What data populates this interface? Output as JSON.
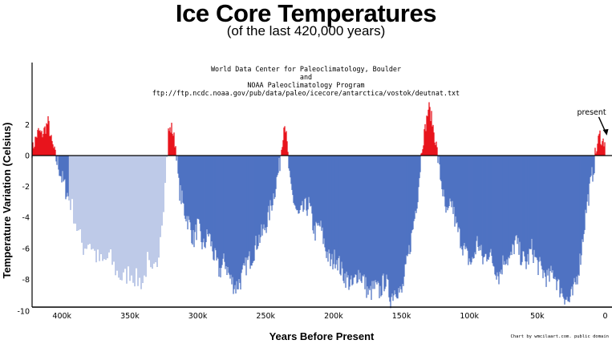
{
  "chart_data": {
    "type": "area",
    "title": "Ice Core Temperatures",
    "subtitle": "(of the last 420,000 years)",
    "source_lines": [
      "World Data Center for Paleoclimatology, Boulder",
      "and",
      "NOAA Paleoclimatology Program",
      "ftp://ftp.ncdc.noaa.gov/pub/data/paleo/icecore/antarctica/vostok/deutnat.txt"
    ],
    "credit": "Chart by wmcilaart.com. public domain",
    "xlabel": "Years Before Present",
    "ylabel": "Temperature Variation (Celsius)",
    "x_unit": "years before present",
    "x_reversed": true,
    "xlim": [
      422000,
      -5000
    ],
    "ylim": [
      -10,
      3
    ],
    "x_ticks": [
      {
        "value": 400000,
        "label": "400k"
      },
      {
        "value": 350000,
        "label": "350k"
      },
      {
        "value": 300000,
        "label": "300k"
      },
      {
        "value": 250000,
        "label": "250k"
      },
      {
        "value": 200000,
        "label": "200k"
      },
      {
        "value": 150000,
        "label": "150k"
      },
      {
        "value": 100000,
        "label": "100k"
      },
      {
        "value": 50000,
        "label": "50k"
      },
      {
        "value": 0,
        "label": "0"
      }
    ],
    "y_ticks": [
      {
        "value": 2,
        "label": "2"
      },
      {
        "value": 0,
        "label": "0"
      },
      {
        "value": -2,
        "label": "-2"
      },
      {
        "value": -4,
        "label": "-4"
      },
      {
        "value": -6,
        "label": "-6"
      },
      {
        "value": -8,
        "label": "-8"
      },
      {
        "value": -10,
        "label": "-10"
      }
    ],
    "colors": {
      "warm": "#e8141c",
      "cold": "#4f72c2",
      "cold_sparse": "#7d96d1"
    },
    "sparse_segment": [
      395000,
      322000
    ],
    "annotation": {
      "text": "present",
      "x": 0,
      "y": 1.3
    },
    "series": [
      {
        "x": [
          422000,
          419000,
          417000,
          415000,
          412000,
          410000,
          408000,
          406000,
          404000,
          402000,
          400000,
          396000,
          392000,
          388000,
          384000,
          380000,
          375000,
          370000,
          365000,
          360000,
          355000,
          350000,
          345000,
          340000,
          337000,
          334000,
          330000,
          327000,
          324000,
          322000,
          319000,
          316000,
          314000,
          310000,
          306000,
          303000,
          300000,
          296000,
          292000,
          288000,
          284000,
          280000,
          276000,
          272000,
          268000,
          264000,
          260000,
          256000,
          252000,
          248000,
          244000,
          240000,
          238000,
          236000,
          234000,
          232000,
          229000,
          226000,
          222000,
          218000,
          214000,
          210000,
          206000,
          202000,
          198000,
          194000,
          190000,
          186000,
          182000,
          178000,
          174000,
          170000,
          166000,
          162000,
          158000,
          154000,
          150000,
          146000,
          142000,
          138000,
          135000,
          132000,
          130000,
          128000,
          126000,
          124000,
          122000,
          120000,
          118000,
          116000,
          113000,
          110000,
          106000,
          102000,
          98000,
          94000,
          90000,
          86000,
          82000,
          78000,
          74000,
          70000,
          66000,
          62000,
          58000,
          54000,
          50000,
          46000,
          42000,
          38000,
          34000,
          30000,
          27000,
          24000,
          21000,
          18000,
          16000,
          14000,
          12000,
          10000,
          8000,
          6000,
          4000,
          2000,
          0
        ],
        "y": [
          0.3,
          1.2,
          1.6,
          1.3,
          1.8,
          2.2,
          1.0,
          0.4,
          -0.3,
          -0.8,
          -1.5,
          -2.5,
          -3.5,
          -5.0,
          -6.0,
          -5.5,
          -6.5,
          -7.0,
          -6.5,
          -7.5,
          -8.0,
          -7.5,
          -8.0,
          -8.2,
          -6.8,
          -8.0,
          -7.0,
          -4.5,
          -2.0,
          1.5,
          1.8,
          0.5,
          -2.0,
          -3.5,
          -4.5,
          -5.5,
          -4.5,
          -6.0,
          -5.0,
          -6.5,
          -7.5,
          -6.8,
          -8.0,
          -8.5,
          -8.0,
          -7.0,
          -6.5,
          -5.5,
          -5.0,
          -4.0,
          -2.5,
          -0.8,
          0.8,
          2.3,
          0.5,
          -2.0,
          -3.0,
          -4.0,
          -3.5,
          -3.2,
          -5.0,
          -4.5,
          -6.0,
          -7.0,
          -6.5,
          -7.5,
          -8.0,
          -8.5,
          -7.5,
          -8.0,
          -9.0,
          -8.5,
          -8.8,
          -8.0,
          -9.2,
          -8.5,
          -9.0,
          -7.0,
          -5.0,
          -2.5,
          0.5,
          2.0,
          3.2,
          2.5,
          1.5,
          0.5,
          -1.0,
          -2.0,
          -3.5,
          -4.0,
          -3.0,
          -4.5,
          -5.5,
          -6.5,
          -7.0,
          -5.5,
          -6.8,
          -6.2,
          -7.0,
          -7.8,
          -6.5,
          -6.8,
          -5.5,
          -6.5,
          -7.0,
          -6.0,
          -7.0,
          -7.5,
          -8.0,
          -7.5,
          -8.5,
          -9.0,
          -9.5,
          -9.0,
          -8.0,
          -6.5,
          -5.0,
          -3.5,
          -2.5,
          -1.5,
          -0.5,
          0.6,
          1.4,
          0.8,
          1.1
        ]
      }
    ]
  }
}
